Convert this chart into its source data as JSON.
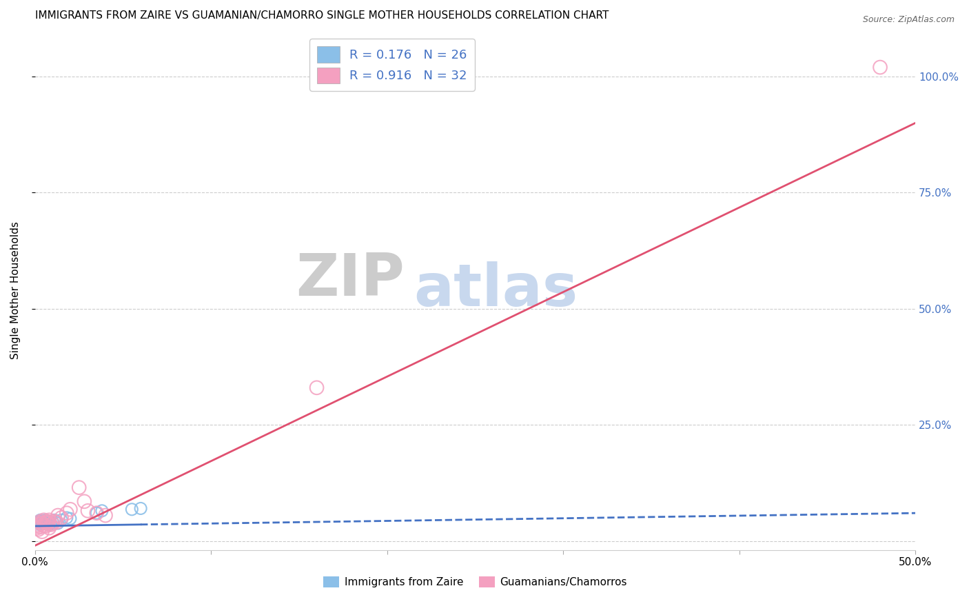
{
  "title": "IMMIGRANTS FROM ZAIRE VS GUAMANIAN/CHAMORRO SINGLE MOTHER HOUSEHOLDS CORRELATION CHART",
  "source": "Source: ZipAtlas.com",
  "ylabel": "Single Mother Households",
  "xlim": [
    0,
    0.5
  ],
  "ylim": [
    -0.02,
    1.1
  ],
  "yticks": [
    0,
    0.25,
    0.5,
    0.75,
    1.0
  ],
  "xticks": [
    0.0,
    0.1,
    0.2,
    0.3,
    0.4,
    0.5
  ],
  "xtick_labels": [
    "0.0%",
    "",
    "",
    "",
    "",
    "50.0%"
  ],
  "blue_R": 0.176,
  "blue_N": 26,
  "pink_R": 0.916,
  "pink_N": 32,
  "blue_color": "#8BBFE8",
  "pink_color": "#F4A0C0",
  "blue_line_color": "#4472C4",
  "pink_line_color": "#E05070",
  "watermark_zip": "ZIP",
  "watermark_atlas": "atlas",
  "watermark_zip_color": "#CCCCCC",
  "watermark_atlas_color": "#C8D8EE",
  "legend_label_blue": "Immigrants from Zaire",
  "legend_label_pink": "Guamanians/Chamorros",
  "blue_scatter_x": [
    0.001,
    0.002,
    0.002,
    0.003,
    0.003,
    0.004,
    0.004,
    0.005,
    0.005,
    0.006,
    0.006,
    0.007,
    0.008,
    0.008,
    0.009,
    0.01,
    0.011,
    0.012,
    0.013,
    0.015,
    0.018,
    0.02,
    0.035,
    0.038,
    0.055,
    0.06
  ],
  "blue_scatter_y": [
    0.04,
    0.038,
    0.042,
    0.035,
    0.045,
    0.038,
    0.043,
    0.04,
    0.042,
    0.038,
    0.045,
    0.04,
    0.035,
    0.042,
    0.038,
    0.04,
    0.045,
    0.042,
    0.038,
    0.045,
    0.05,
    0.048,
    0.06,
    0.065,
    0.068,
    0.07
  ],
  "pink_scatter_x": [
    0.001,
    0.001,
    0.002,
    0.002,
    0.003,
    0.003,
    0.003,
    0.004,
    0.004,
    0.005,
    0.005,
    0.006,
    0.006,
    0.007,
    0.007,
    0.008,
    0.008,
    0.009,
    0.01,
    0.011,
    0.012,
    0.013,
    0.015,
    0.018,
    0.02,
    0.025,
    0.028,
    0.03,
    0.035,
    0.04,
    0.16,
    0.48
  ],
  "pink_scatter_y": [
    0.028,
    0.032,
    0.025,
    0.035,
    0.038,
    0.03,
    0.042,
    0.02,
    0.038,
    0.033,
    0.045,
    0.04,
    0.032,
    0.038,
    0.042,
    0.028,
    0.045,
    0.035,
    0.038,
    0.042,
    0.04,
    0.055,
    0.05,
    0.06,
    0.068,
    0.115,
    0.085,
    0.065,
    0.06,
    0.055,
    0.33,
    1.02
  ],
  "blue_trend_x": [
    0.0,
    0.5
  ],
  "blue_trend_y": [
    0.032,
    0.06
  ],
  "pink_trend_x": [
    0.0,
    0.5
  ],
  "pink_trend_y": [
    -0.01,
    0.9
  ],
  "right_axis_color": "#4472C4",
  "right_ytick_labels": [
    "",
    "25.0%",
    "50.0%",
    "75.0%",
    "100.0%"
  ]
}
